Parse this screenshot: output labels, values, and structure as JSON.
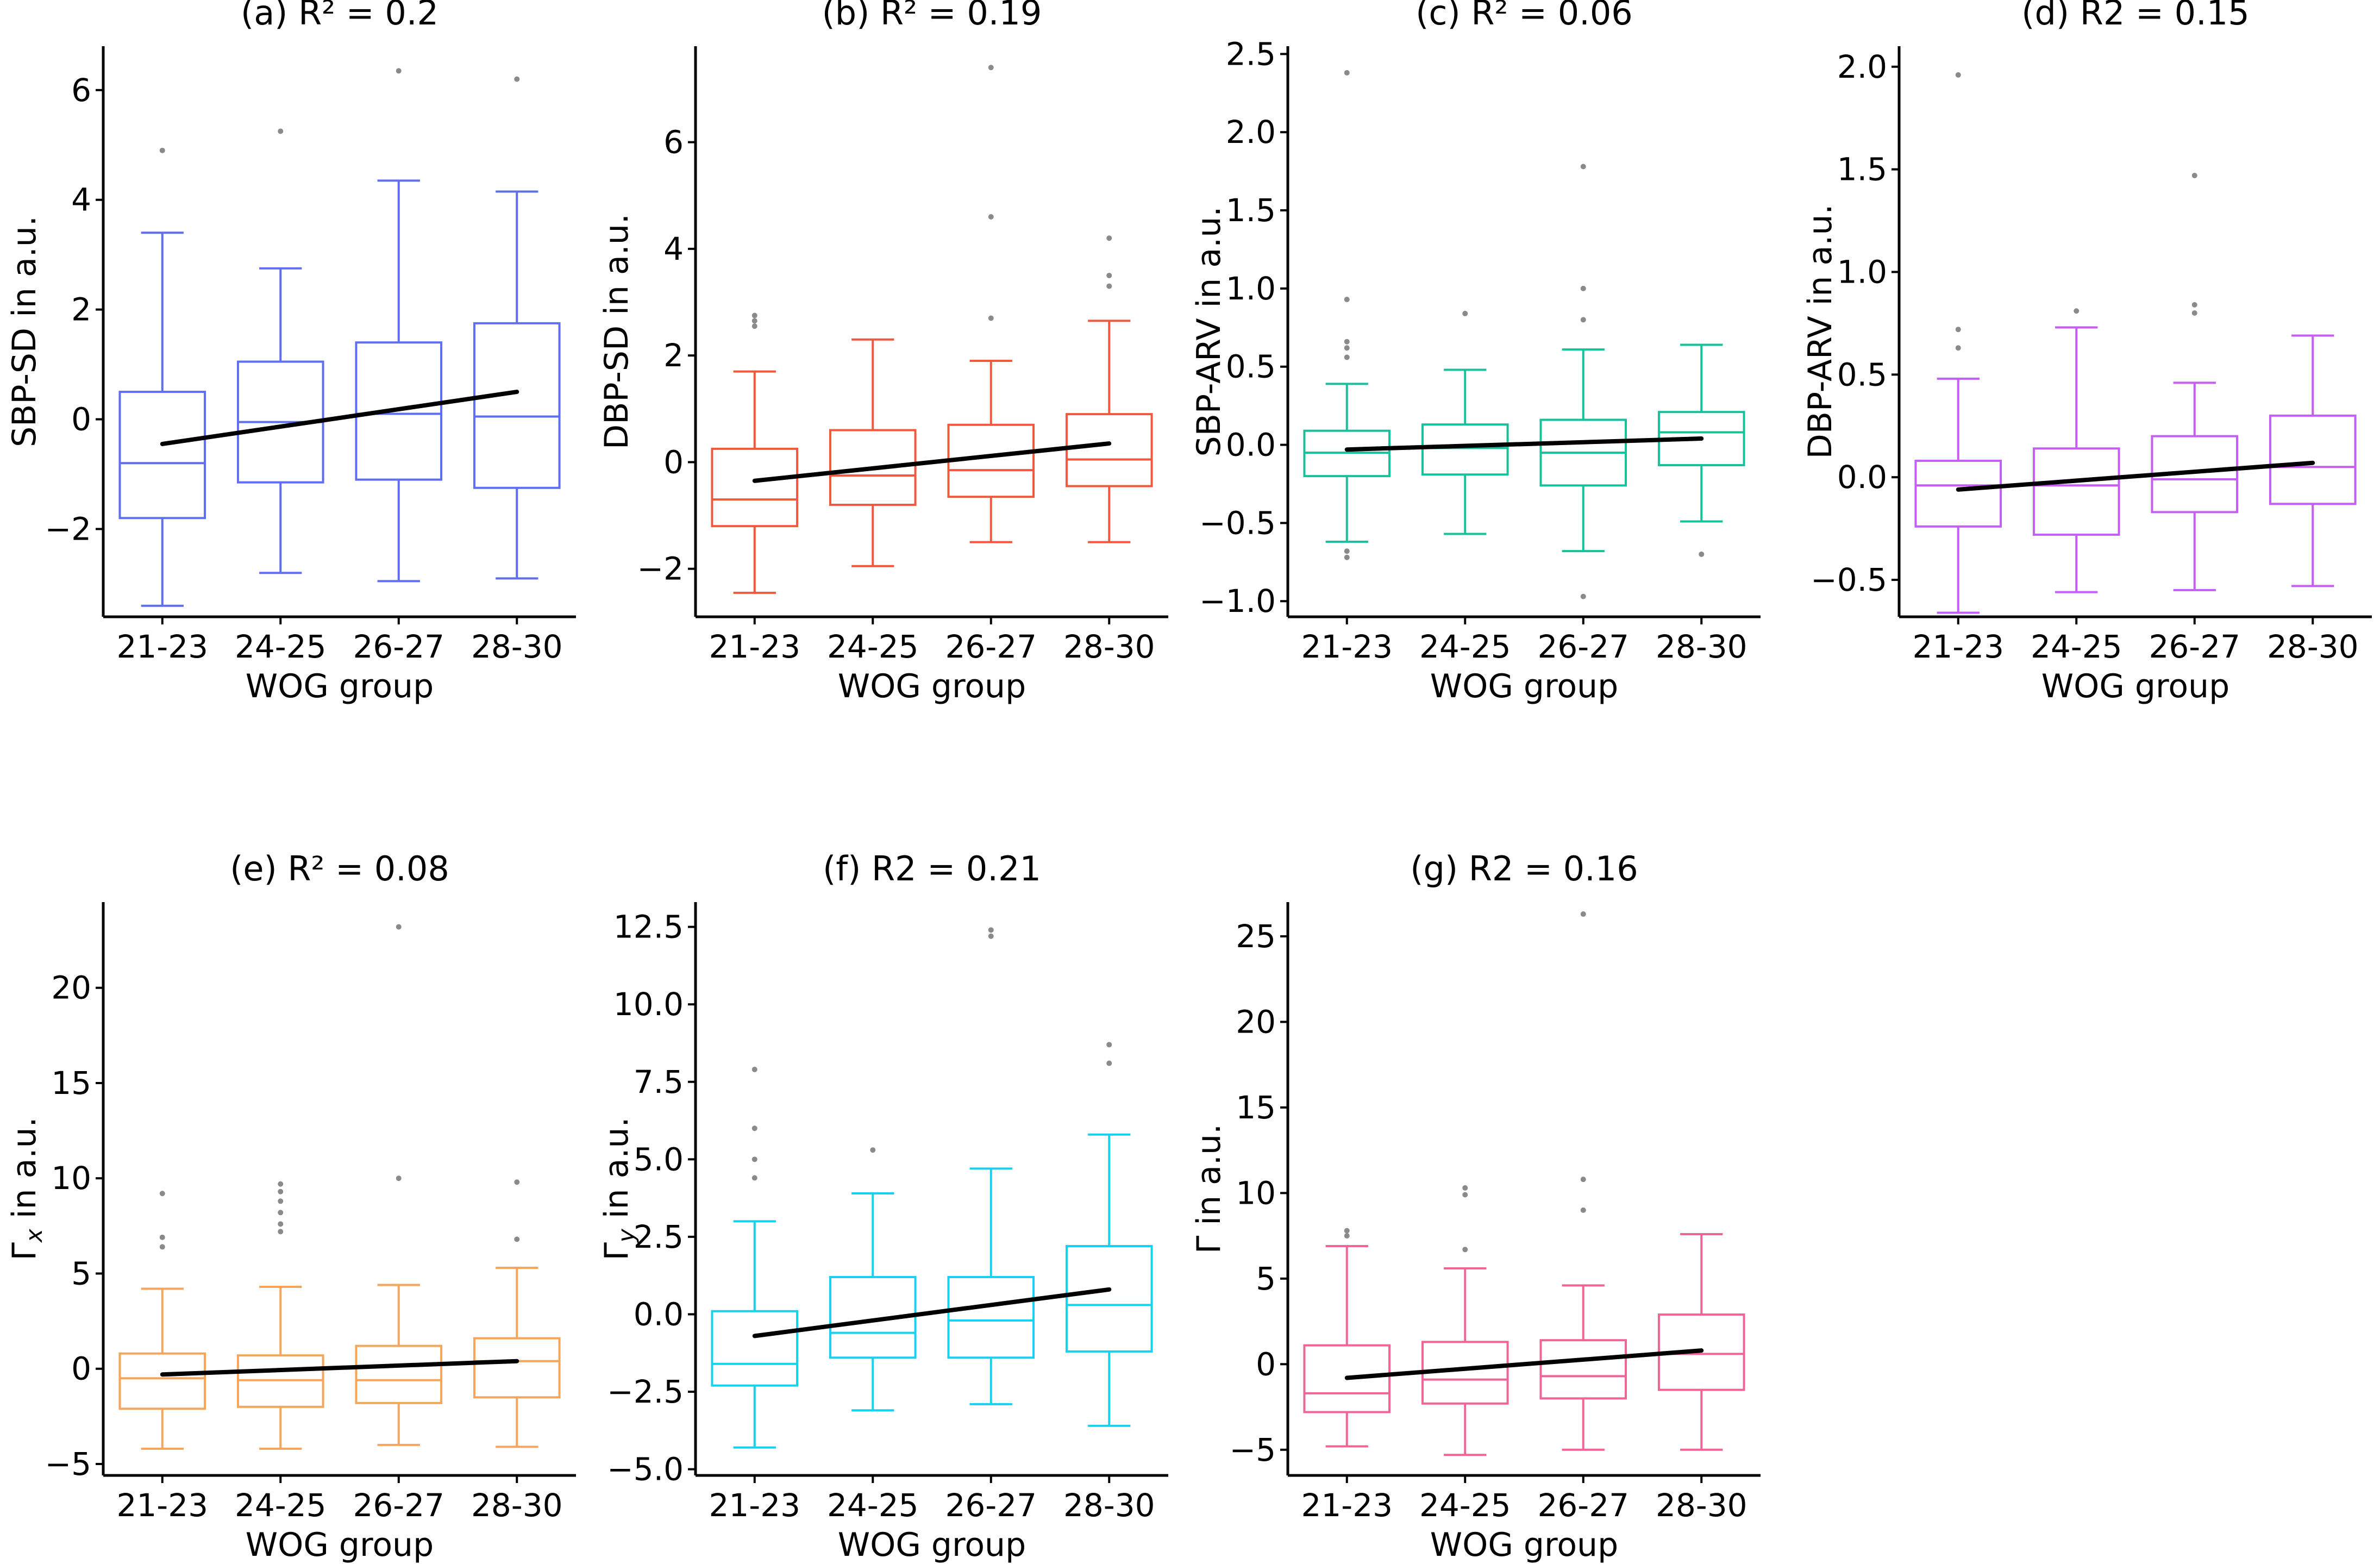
{
  "chart_data": [
    {
      "type": "box",
      "id": "a",
      "title": "(a) R² = 0.2",
      "color": "#5f6ff0",
      "xlabel": "WOG group",
      "ylabel": "SBP-SD in a.u.",
      "ylim": [
        -3.6,
        6.8
      ],
      "yticks": [
        -2,
        0,
        2,
        4,
        6
      ],
      "categories": [
        "21-23",
        "24-25",
        "26-27",
        "28-30"
      ],
      "boxes": [
        {
          "min": -3.4,
          "q1": -1.8,
          "median": -0.8,
          "q3": 0.5,
          "max": 3.4,
          "outliers": [
            4.9
          ]
        },
        {
          "min": -2.8,
          "q1": -1.15,
          "median": -0.05,
          "q3": 1.05,
          "max": 2.75,
          "outliers": [
            5.25
          ]
        },
        {
          "min": -2.95,
          "q1": -1.1,
          "median": 0.1,
          "q3": 1.4,
          "max": 4.35,
          "outliers": [
            6.35
          ]
        },
        {
          "min": -2.9,
          "q1": -1.25,
          "median": 0.05,
          "q3": 1.75,
          "max": 4.15,
          "outliers": [
            6.2
          ]
        }
      ],
      "trend": [
        -0.45,
        0.5
      ]
    },
    {
      "type": "box",
      "id": "b",
      "title": "(b) R² = 0.19",
      "color": "#ef5a3e",
      "xlabel": "WOG group",
      "ylabel": "DBP-SD in a.u.",
      "ylim": [
        -2.9,
        7.8
      ],
      "yticks": [
        -2,
        0,
        2,
        4,
        6
      ],
      "categories": [
        "21-23",
        "24-25",
        "26-27",
        "28-30"
      ],
      "boxes": [
        {
          "min": -2.45,
          "q1": -1.2,
          "median": -0.7,
          "q3": 0.25,
          "max": 1.7,
          "outliers": [
            2.55,
            2.65,
            2.75
          ]
        },
        {
          "min": -1.95,
          "q1": -0.8,
          "median": -0.25,
          "q3": 0.6,
          "max": 2.3,
          "outliers": []
        },
        {
          "min": -1.5,
          "q1": -0.65,
          "median": -0.15,
          "q3": 0.7,
          "max": 1.9,
          "outliers": [
            2.7,
            4.6,
            7.4
          ]
        },
        {
          "min": -1.5,
          "q1": -0.45,
          "median": 0.05,
          "q3": 0.9,
          "max": 2.65,
          "outliers": [
            3.3,
            3.5,
            4.2
          ]
        }
      ],
      "trend": [
        -0.35,
        0.35
      ]
    },
    {
      "type": "box",
      "id": "c",
      "title": "(c) R² = 0.06",
      "color": "#17c19a",
      "xlabel": "WOG group",
      "ylabel": "SBP-ARV in a.u.",
      "ylim": [
        -1.1,
        2.55
      ],
      "yticks": [
        -1.0,
        -0.5,
        0.0,
        0.5,
        1.0,
        1.5,
        2.0,
        2.5
      ],
      "categories": [
        "21-23",
        "24-25",
        "26-27",
        "28-30"
      ],
      "boxes": [
        {
          "min": -0.62,
          "q1": -0.2,
          "median": -0.05,
          "q3": 0.09,
          "max": 0.39,
          "outliers": [
            -0.68,
            -0.72,
            0.56,
            0.62,
            0.66,
            0.93,
            2.38
          ]
        },
        {
          "min": -0.57,
          "q1": -0.19,
          "median": -0.02,
          "q3": 0.13,
          "max": 0.48,
          "outliers": [
            0.84
          ]
        },
        {
          "min": -0.68,
          "q1": -0.26,
          "median": -0.05,
          "q3": 0.16,
          "max": 0.61,
          "outliers": [
            -0.97,
            0.8,
            1.0,
            1.78
          ]
        },
        {
          "min": -0.49,
          "q1": -0.13,
          "median": 0.08,
          "q3": 0.21,
          "max": 0.64,
          "outliers": [
            -0.7
          ]
        }
      ],
      "trend": [
        -0.03,
        0.04
      ]
    },
    {
      "type": "box",
      "id": "d",
      "title": "(d) R2 = 0.15",
      "color": "#c45ef5",
      "xlabel": "WOG group",
      "ylabel": "DBP-ARV in a.u.",
      "ylim": [
        -0.68,
        2.1
      ],
      "yticks": [
        -0.5,
        0.0,
        0.5,
        1.0,
        1.5,
        2.0
      ],
      "categories": [
        "21-23",
        "24-25",
        "26-27",
        "28-30"
      ],
      "boxes": [
        {
          "min": -0.66,
          "q1": -0.24,
          "median": -0.04,
          "q3": 0.08,
          "max": 0.48,
          "outliers": [
            0.63,
            0.72,
            1.96
          ]
        },
        {
          "min": -0.56,
          "q1": -0.28,
          "median": -0.04,
          "q3": 0.14,
          "max": 0.73,
          "outliers": [
            0.81
          ]
        },
        {
          "min": -0.55,
          "q1": -0.17,
          "median": -0.01,
          "q3": 0.2,
          "max": 0.46,
          "outliers": [
            0.8,
            0.84,
            1.47
          ]
        },
        {
          "min": -0.53,
          "q1": -0.13,
          "median": 0.05,
          "q3": 0.3,
          "max": 0.69,
          "outliers": []
        }
      ],
      "trend": [
        -0.06,
        0.07
      ]
    },
    {
      "type": "box",
      "id": "e",
      "title": "(e) R² = 0.08",
      "color": "#f6a55c",
      "xlabel": "WOG group",
      "ylabel": "Γx in a.u.",
      "ylabel_main": "Γ",
      "ylabel_sub": "x",
      "ylabel_rest": " in a.u.",
      "ylim": [
        -5.6,
        24.5
      ],
      "yticks": [
        -5,
        0,
        5,
        10,
        15,
        20
      ],
      "categories": [
        "21-23",
        "24-25",
        "26-27",
        "28-30"
      ],
      "boxes": [
        {
          "min": -4.2,
          "q1": -2.1,
          "median": -0.5,
          "q3": 0.8,
          "max": 4.2,
          "outliers": [
            6.4,
            6.9,
            9.2
          ]
        },
        {
          "min": -4.2,
          "q1": -2.0,
          "median": -0.6,
          "q3": 0.7,
          "max": 4.3,
          "outliers": [
            7.2,
            7.6,
            8.2,
            8.8,
            9.3,
            9.7
          ]
        },
        {
          "min": -4.0,
          "q1": -1.8,
          "median": -0.6,
          "q3": 1.2,
          "max": 4.4,
          "outliers": [
            10.0,
            23.2
          ]
        },
        {
          "min": -4.1,
          "q1": -1.5,
          "median": 0.4,
          "q3": 1.6,
          "max": 5.3,
          "outliers": [
            6.8,
            9.8
          ]
        }
      ],
      "trend": [
        -0.3,
        0.4
      ]
    },
    {
      "type": "box",
      "id": "f",
      "title": "(f) R2 = 0.21",
      "color": "#17d1ef",
      "xlabel": "WOG group",
      "ylabel": "Γy in a.u.",
      "ylabel_main": "Γ",
      "ylabel_sub": "y",
      "ylabel_rest": " in a.u.",
      "ylim": [
        -5.2,
        13.3
      ],
      "yticks": [
        -5.0,
        -2.5,
        0.0,
        2.5,
        5.0,
        7.5,
        10.0,
        12.5
      ],
      "categories": [
        "21-23",
        "24-25",
        "26-27",
        "28-30"
      ],
      "boxes": [
        {
          "min": -4.3,
          "q1": -2.3,
          "median": -1.6,
          "q3": 0.1,
          "max": 3.0,
          "outliers": [
            4.4,
            5.0,
            6.0,
            7.9
          ]
        },
        {
          "min": -3.1,
          "q1": -1.4,
          "median": -0.6,
          "q3": 1.2,
          "max": 3.9,
          "outliers": [
            5.3
          ]
        },
        {
          "min": -2.9,
          "q1": -1.4,
          "median": -0.2,
          "q3": 1.2,
          "max": 4.7,
          "outliers": [
            12.2,
            12.4
          ]
        },
        {
          "min": -3.6,
          "q1": -1.2,
          "median": 0.3,
          "q3": 2.2,
          "max": 5.8,
          "outliers": [
            8.1,
            8.7
          ]
        }
      ],
      "trend": [
        -0.7,
        0.8
      ]
    },
    {
      "type": "box",
      "id": "g",
      "title": "(g) R2 = 0.16",
      "color": "#ef6598",
      "xlabel": "WOG group",
      "ylabel": "Γ in a.u.",
      "ylabel_main": "Γ",
      "ylabel_sub": "",
      "ylabel_rest": " in a.u.",
      "ylim": [
        -6.5,
        27
      ],
      "yticks": [
        -5,
        0,
        5,
        10,
        15,
        20,
        25
      ],
      "categories": [
        "21-23",
        "24-25",
        "26-27",
        "28-30"
      ],
      "boxes": [
        {
          "min": -4.8,
          "q1": -2.8,
          "median": -1.7,
          "q3": 1.1,
          "max": 6.9,
          "outliers": [
            7.5,
            7.8
          ]
        },
        {
          "min": -5.3,
          "q1": -2.3,
          "median": -0.9,
          "q3": 1.3,
          "max": 5.6,
          "outliers": [
            6.7,
            9.9,
            10.3
          ]
        },
        {
          "min": -5.0,
          "q1": -2.0,
          "median": -0.7,
          "q3": 1.4,
          "max": 4.6,
          "outliers": [
            9.0,
            10.8,
            26.3
          ]
        },
        {
          "min": -5.0,
          "q1": -1.5,
          "median": 0.6,
          "q3": 2.9,
          "max": 7.6,
          "outliers": []
        }
      ],
      "trend": [
        -0.8,
        0.8
      ]
    }
  ]
}
